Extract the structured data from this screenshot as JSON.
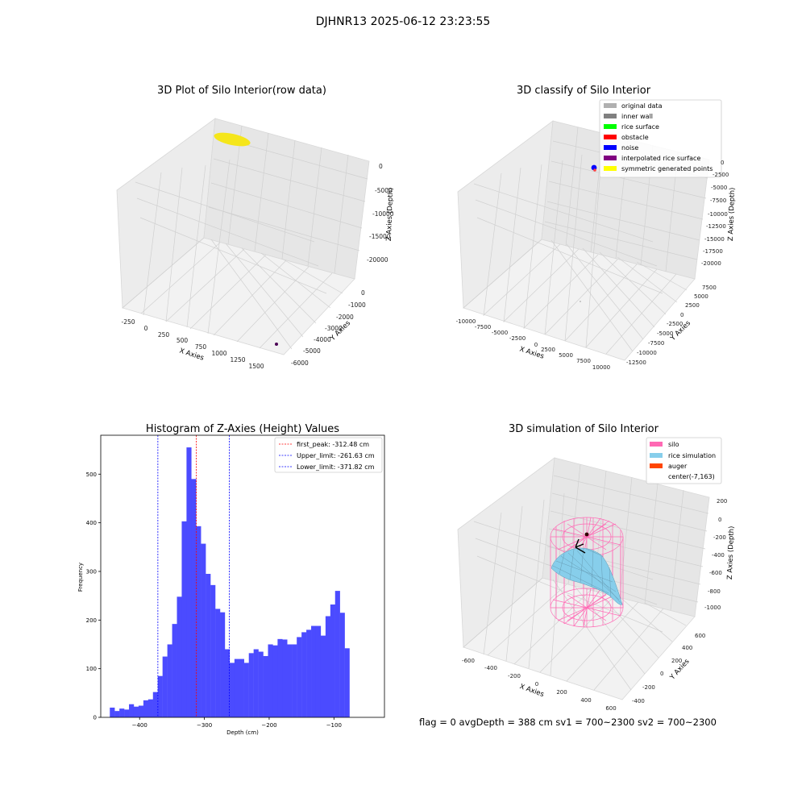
{
  "figure": {
    "title": "DJHNR13 2025-06-12 23:23:55",
    "status_line": "flag = 0     avgDepth = 388 cm  sv1 = 700~2300  sv2 = 700~2300"
  },
  "colors": {
    "hist_bar": "#4b4bff",
    "peak_line": "#ff0000",
    "limit_line": "#0000ff",
    "raw_points": "#f5e61b",
    "silo": "#ff69b4",
    "rice": "#87ceeb",
    "auger": "#ff4500"
  },
  "panel_raw": {
    "title": "3D Plot of Silo Interior(row data)",
    "xlabel": "X Axies",
    "ylabel": "Y Axies",
    "zlabel": "Z Axies (Depth)",
    "x_ticks": [
      "-250",
      "0",
      "250",
      "500",
      "750",
      "1000",
      "1250",
      "1500"
    ],
    "y_ticks": [
      "0",
      "-1000",
      "-2000",
      "-3000",
      "-4000",
      "-5000",
      "-6000"
    ],
    "z_ticks": [
      "0",
      "-5000",
      "-10000",
      "-15000",
      "-20000"
    ]
  },
  "panel_classify": {
    "title": "3D classify of Silo Interior",
    "xlabel": "X Axies",
    "ylabel": "Y Axies",
    "zlabel": "Z Axies (Depth)",
    "x_ticks": [
      "-10000",
      "-7500",
      "-5000",
      "-2500",
      "0",
      "2500",
      "5000",
      "7500",
      "10000"
    ],
    "y_ticks": [
      "7500",
      "5000",
      "2500",
      "0",
      "-2500",
      "-5000",
      "-7500",
      "-10000",
      "-12500"
    ],
    "z_ticks": [
      "0",
      "-2500",
      "-5000",
      "-7500",
      "-10000",
      "-12500",
      "-15000",
      "-17500",
      "-20000"
    ],
    "legend": [
      {
        "label": "original data",
        "color": "#b0b0b0"
      },
      {
        "label": "inner wall",
        "color": "#808080"
      },
      {
        "label": "rice surface",
        "color": "#00ff00"
      },
      {
        "label": "obstacle",
        "color": "#ff0000"
      },
      {
        "label": "noise",
        "color": "#0000ff"
      },
      {
        "label": "interpolated rice surface",
        "color": "#800080"
      },
      {
        "label": "symmetric generated points",
        "color": "#ffff00"
      }
    ]
  },
  "panel_sim": {
    "title": "3D simulation of Silo Interior",
    "xlabel": "X Axies",
    "ylabel": "Y Axies",
    "zlabel": "Z Axies (Depth)",
    "x_ticks": [
      "-600",
      "-400",
      "-200",
      "0",
      "200",
      "400",
      "600"
    ],
    "y_ticks": [
      "600",
      "400",
      "200",
      "0",
      "-200",
      "-400"
    ],
    "z_ticks": [
      "200",
      "0",
      "-200",
      "-400",
      "-600",
      "-800",
      "-1000"
    ],
    "legend": [
      {
        "label": "silo",
        "color": "#ff69b4"
      },
      {
        "label": "rice simulation",
        "color": "#87ceeb"
      },
      {
        "label": "auger",
        "color": "#ff4500"
      },
      {
        "label": "center(-7,163)",
        "color": ""
      }
    ]
  },
  "chart_data": {
    "type": "bar",
    "title": "Histogram of Z-Axies (Height) Values",
    "xlabel": "Depth (cm)",
    "ylabel": "Frequency",
    "xlim": [
      -460,
      -22
    ],
    "ylim": [
      0,
      580
    ],
    "x_ticks": [
      -400,
      -300,
      -200,
      -100
    ],
    "y_ticks": [
      0,
      100,
      200,
      300,
      400,
      500
    ],
    "bin_start": -446,
    "bin_width": 7.4,
    "values": [
      20,
      13,
      18,
      16,
      27,
      22,
      24,
      35,
      37,
      52,
      85,
      125,
      150,
      192,
      248,
      403,
      555,
      490,
      393,
      357,
      295,
      272,
      223,
      216,
      140,
      112,
      120,
      120,
      112,
      132,
      140,
      135,
      126,
      150,
      148,
      161,
      160,
      150,
      150,
      165,
      175,
      180,
      188,
      188,
      168,
      208,
      232,
      260,
      215,
      142
    ],
    "vlines": [
      {
        "label": "first_peak: -312.48 cm",
        "x": -312.48,
        "color": "#ff0000"
      },
      {
        "label": "Upper_limit: -261.63 cm",
        "x": -261.63,
        "color": "#0000ff"
      },
      {
        "label": "Lower_limit: -371.82 cm",
        "x": -371.82,
        "color": "#0000ff"
      }
    ]
  }
}
